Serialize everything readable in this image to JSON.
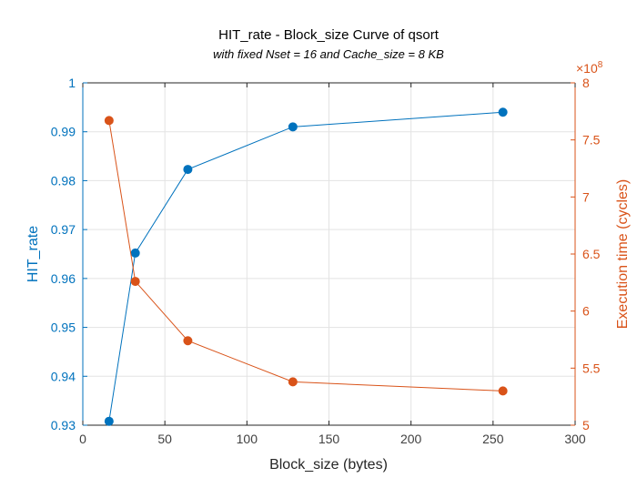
{
  "chart_data": {
    "type": "line",
    "title": "HIT_rate - Block_size Curve of qsort",
    "subtitle": "with fixed Nset = 16 and Cache_size = 8 KB",
    "xlabel": "Block_size (bytes)",
    "ylabel_left": "HIT_rate",
    "ylabel_right": "Execution time (cycles)",
    "xlim": [
      0,
      300
    ],
    "ylim_left": [
      0.93,
      1.0
    ],
    "ylim_right": [
      500000000,
      800000000
    ],
    "x_ticks": [
      "0",
      "50",
      "100",
      "150",
      "200",
      "250",
      "300"
    ],
    "y_left_ticks": [
      "0.93",
      "0.94",
      "0.95",
      "0.96",
      "0.97",
      "0.98",
      "0.99",
      "1"
    ],
    "y_right_ticks": [
      "5",
      "5.5",
      "6",
      "6.5",
      "7",
      "7.5",
      "8"
    ],
    "right_axis_exponent": {
      "base": "×10",
      "power": "8"
    },
    "grid": true,
    "x": [
      16,
      32,
      64,
      128,
      256
    ],
    "series": [
      {
        "axis": "left",
        "color": "#0072BD",
        "values": [
          0.9308,
          0.9652,
          0.9823,
          0.991,
          0.994
        ]
      },
      {
        "axis": "right",
        "color": "#D95319",
        "values": [
          767000000,
          626000000,
          574000000,
          538000000,
          530000000
        ]
      }
    ]
  }
}
